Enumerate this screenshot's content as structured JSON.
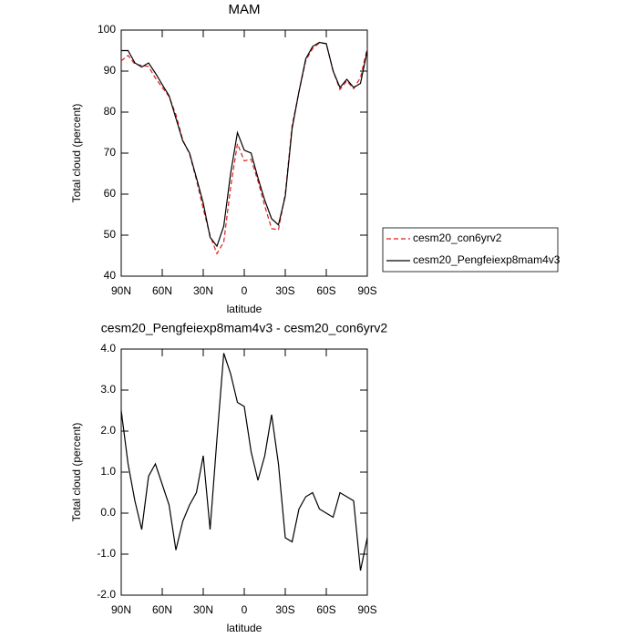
{
  "chart_data": [
    {
      "type": "line",
      "title": "MAM",
      "xlabel": "latitude",
      "ylabel": "Total cloud (percent)",
      "x": [
        90,
        85,
        80,
        75,
        70,
        65,
        60,
        55,
        50,
        45,
        40,
        35,
        30,
        25,
        20,
        15,
        10,
        5,
        0,
        -5,
        -10,
        -15,
        -20,
        -25,
        -30,
        -35,
        -40,
        -45,
        -50,
        -55,
        -60,
        -65,
        -70,
        -75,
        -80,
        -85,
        -90
      ],
      "xlim": [
        90,
        -90
      ],
      "xticks": [
        {
          "value": 90,
          "label": "90N"
        },
        {
          "value": 60,
          "label": "60N"
        },
        {
          "value": 30,
          "label": "30N"
        },
        0,
        {
          "value": -30,
          "label": "30S"
        },
        {
          "value": -60,
          "label": "60S"
        },
        {
          "value": -90,
          "label": "90S"
        }
      ],
      "ylim": [
        40,
        100
      ],
      "yticks": [
        40,
        50,
        60,
        70,
        80,
        90,
        100
      ],
      "legend": "right",
      "series": [
        {
          "name": "cesm20_con6yrv2",
          "color": "#e41a1c",
          "style": "dashed",
          "values": [
            92.5,
            93.8,
            91.7,
            91.4,
            91.1,
            88.3,
            86,
            83.8,
            79.4,
            73.2,
            69.8,
            63.5,
            56.4,
            49.9,
            45.5,
            48.3,
            61.6,
            72.3,
            68.1,
            68.5,
            63.2,
            57.1,
            51.6,
            51.3,
            60.1,
            76.7,
            84.9,
            92.6,
            95.5,
            96.9,
            96.7,
            90.1,
            85.5,
            87.6,
            85.7,
            88.4,
            95.6
          ]
        },
        {
          "name": "cesm20_Pengfeiexp8mam4v3",
          "color": "#000000",
          "style": "solid",
          "values": [
            95,
            95,
            92,
            91,
            92,
            89.5,
            86.7,
            84,
            78.5,
            73,
            70,
            64,
            57.8,
            49.5,
            47.3,
            52.2,
            65,
            75,
            70.7,
            70,
            64,
            58.5,
            54,
            52.5,
            59.5,
            76,
            85,
            93,
            96,
            97,
            96.7,
            90,
            86,
            88,
            86,
            87,
            95
          ]
        }
      ]
    },
    {
      "type": "line",
      "title": "cesm20_Pengfeiexp8mam4v3 - cesm20_con6yrv2",
      "xlabel": "latitude",
      "ylabel": "Total cloud (percent)",
      "x": [
        90,
        85,
        80,
        75,
        70,
        65,
        60,
        55,
        50,
        45,
        40,
        35,
        30,
        25,
        20,
        15,
        10,
        5,
        0,
        -5,
        -10,
        -15,
        -20,
        -25,
        -30,
        -35,
        -40,
        -45,
        -50,
        -55,
        -60,
        -65,
        -70,
        -75,
        -80,
        -85,
        -90
      ],
      "xlim": [
        90,
        -90
      ],
      "xticks": [
        {
          "value": 90,
          "label": "90N"
        },
        {
          "value": 60,
          "label": "60N"
        },
        {
          "value": 30,
          "label": "30N"
        },
        0,
        {
          "value": -30,
          "label": "30S"
        },
        {
          "value": -60,
          "label": "60S"
        },
        {
          "value": -90,
          "label": "90S"
        }
      ],
      "ylim": [
        -2,
        4
      ],
      "yticks": [
        {
          "value": -2,
          "label": "-2.0"
        },
        {
          "value": -1,
          "label": "-1.0"
        },
        {
          "value": 0,
          "label": "0.0"
        },
        {
          "value": 1,
          "label": "1.0"
        },
        {
          "value": 2,
          "label": "2.0"
        },
        {
          "value": 3,
          "label": "3.0"
        },
        {
          "value": 4,
          "label": "4.0"
        }
      ],
      "color": "#000000",
      "values": [
        2.5,
        1.2,
        0.3,
        -0.4,
        0.9,
        1.2,
        0.7,
        0.2,
        -0.9,
        -0.2,
        0.2,
        0.5,
        1.4,
        -0.4,
        1.8,
        3.9,
        3.4,
        2.7,
        2.6,
        1.5,
        0.8,
        1.4,
        2.4,
        1.2,
        -0.6,
        -0.7,
        0.1,
        0.4,
        0.5,
        0.1,
        0,
        -0.1,
        0.5,
        0.4,
        0.3,
        -1.4,
        -0.6
      ]
    }
  ]
}
